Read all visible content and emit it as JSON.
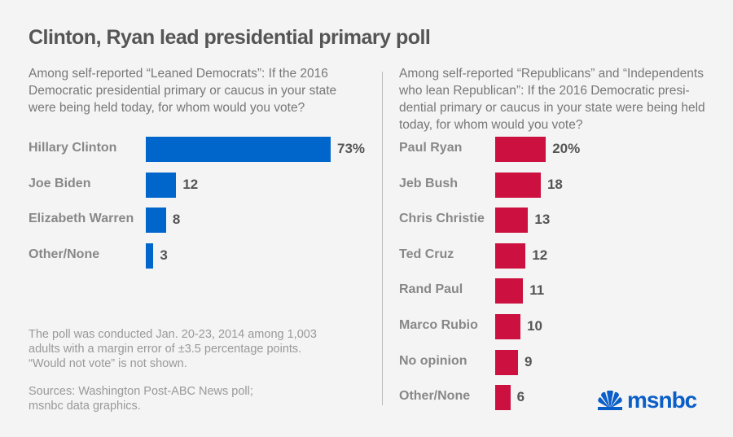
{
  "title": "Clinton, Ryan lead presidential primary poll",
  "colors": {
    "democrats": "#0066cc",
    "republicans": "#cc1040",
    "background": "#f4f4f4"
  },
  "chart_data": [
    {
      "type": "bar",
      "orientation": "horizontal",
      "title": "Among self-reported “Leaned Democrats”: If the 2016 Democratic presidential primary or caucus in your state were being held today, for whom would you vote?",
      "categories": [
        "Hillary Clinton",
        "Joe Biden",
        "Elizabeth Warren",
        "Other/None"
      ],
      "values": [
        73,
        12,
        8,
        3
      ],
      "labels": [
        "73%",
        "12",
        "8",
        "3"
      ],
      "color": "#0066cc"
    },
    {
      "type": "bar",
      "orientation": "horizontal",
      "title": "Among self-reported “Republicans” and “Independents who lean Republican”: If the 2016 Democratic presi-dential primary or caucus in your state were being held today, for whom would you vote?",
      "categories": [
        "Paul Ryan",
        "Jeb Bush",
        "Chris Christie",
        "Ted Cruz",
        "Rand Paul",
        "Marco Rubio",
        "No opinion",
        "Other/None"
      ],
      "values": [
        20,
        18,
        13,
        12,
        11,
        10,
        9,
        6
      ],
      "labels": [
        "20%",
        "18",
        "13",
        "12",
        "11",
        "10",
        "9",
        "6"
      ],
      "color": "#cc1040"
    }
  ],
  "note": "The poll was conducted Jan. 20-23, 2014 among 1,003 adults with a margin error of ±3.5 percentage points. “Would not vote” is not shown.",
  "sources": "Sources: Washington Post-ABC News poll; msnbc data graphics.",
  "logo": "msnbc"
}
